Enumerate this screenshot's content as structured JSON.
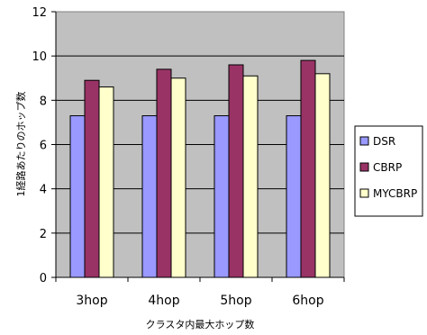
{
  "chart_data": {
    "type": "bar",
    "categories": [
      "3hop",
      "4hop",
      "5hop",
      "6hop"
    ],
    "series": [
      {
        "name": "DSR",
        "values": [
          7.3,
          7.3,
          7.3,
          7.3
        ],
        "color": "#9999ff"
      },
      {
        "name": "CBRP",
        "values": [
          8.9,
          9.4,
          9.6,
          9.8
        ],
        "color": "#993366"
      },
      {
        "name": "MYCBRP",
        "values": [
          8.6,
          9.0,
          9.1,
          9.2
        ],
        "color": "#ffffcc"
      }
    ],
    "yticks": [
      "0",
      "2",
      "4",
      "6",
      "8",
      "10",
      "12"
    ],
    "ylim": [
      0,
      12
    ],
    "xlabel": "クラスタ内最大ホップ数",
    "ylabel": "1経路あたりのホップ数",
    "grid": true,
    "plot_background": "#c0c0c0",
    "legend_position": "right"
  }
}
